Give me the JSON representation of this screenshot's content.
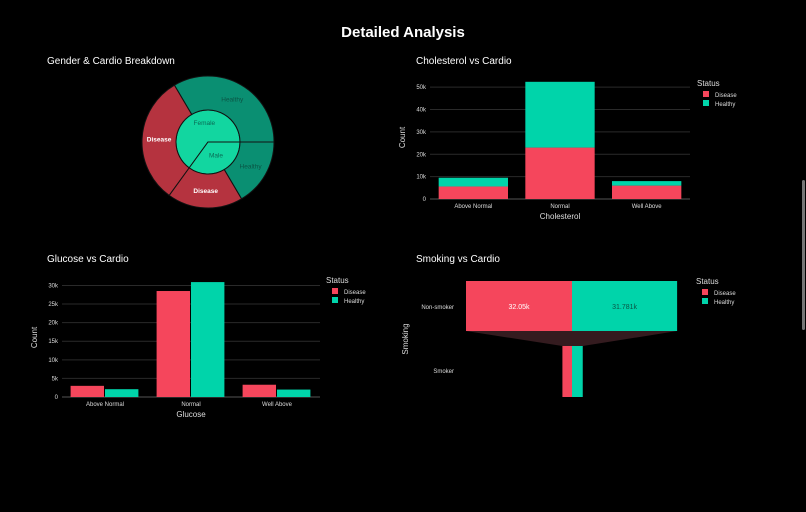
{
  "title": "Detailed Analysis",
  "colors": {
    "disease": "#f5465c",
    "healthy": "#00d4aa",
    "sun_disease": "#b5333f",
    "sun_healthy_outer": "#0a8f72",
    "sun_inner": "#12d6a0"
  },
  "chart_data": [
    {
      "type": "sunburst",
      "title": "Gender & Cardio Breakdown",
      "inner": [
        {
          "label": "Female",
          "share": 0.65
        },
        {
          "label": "Male",
          "share": 0.35
        }
      ],
      "outer": [
        {
          "parent": "Female",
          "label": "Healthy",
          "share": 0.335
        },
        {
          "parent": "Female",
          "label": "Disease",
          "share": 0.315
        },
        {
          "parent": "Male",
          "label": "Disease",
          "share": 0.185
        },
        {
          "parent": "Male",
          "label": "Healthy",
          "share": 0.165
        }
      ]
    },
    {
      "type": "bar",
      "mode": "stack",
      "title": "Cholesterol vs Cardio",
      "xlabel": "Cholesterol",
      "ylabel": "Count",
      "categories": [
        "Above Normal",
        "Normal",
        "Well Above"
      ],
      "yticks": [
        0,
        10000,
        20000,
        30000,
        40000,
        50000
      ],
      "ytick_labels": [
        "0",
        "10k",
        "20k",
        "30k",
        "40k",
        "50k"
      ],
      "ylim": [
        0,
        55000
      ],
      "legend_title": "Status",
      "legend": "top-right",
      "series": [
        {
          "name": "Disease",
          "values": [
            5600,
            23000,
            6000
          ]
        },
        {
          "name": "Healthy",
          "values": [
            3900,
            29400,
            2000
          ]
        }
      ]
    },
    {
      "type": "bar",
      "mode": "group",
      "title": "Glucose vs Cardio",
      "xlabel": "Glucose",
      "ylabel": "Count",
      "categories": [
        "Above Normal",
        "Normal",
        "Well Above"
      ],
      "yticks": [
        0,
        5000,
        10000,
        15000,
        20000,
        25000,
        30000
      ],
      "ytick_labels": [
        "0",
        "5k",
        "10k",
        "15k",
        "20k",
        "25k",
        "30k"
      ],
      "ylim": [
        0,
        32000
      ],
      "legend_title": "Status",
      "legend": "top-right",
      "series": [
        {
          "name": "Disease",
          "values": [
            3000,
            28500,
            3300
          ]
        },
        {
          "name": "Healthy",
          "values": [
            2100,
            30900,
            2000
          ]
        }
      ]
    },
    {
      "type": "funnel",
      "title": "Smoking vs Cardio",
      "ylabel": "Smoking",
      "categories": [
        "Non-smoker",
        "Smoker"
      ],
      "legend_title": "Status",
      "legend": "top-right",
      "series": [
        {
          "name": "Disease",
          "values": [
            32050,
            2900
          ],
          "labels": [
            "32.05k",
            ""
          ]
        },
        {
          "name": "Healthy",
          "values": [
            31781,
            3250
          ],
          "labels": [
            "31.781k",
            ""
          ]
        }
      ]
    }
  ]
}
